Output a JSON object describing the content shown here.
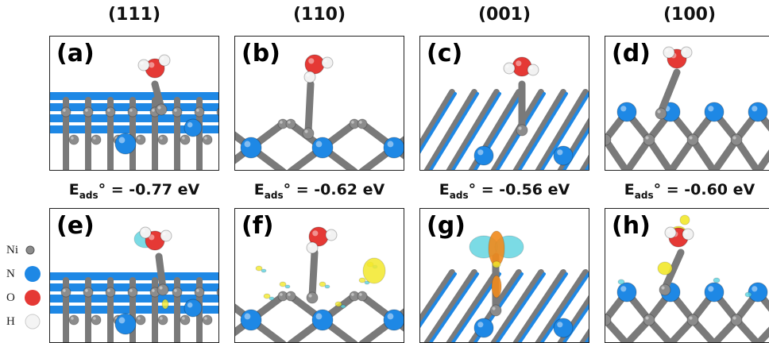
{
  "headers": [
    "(111)",
    "(110)",
    "(001)",
    "(100)"
  ],
  "panels_top": [
    "(a)",
    "(b)",
    "(c)",
    "(d)"
  ],
  "panels_bottom": [
    "(e)",
    "(f)",
    "(g)",
    "(h)"
  ],
  "energies": [
    {
      "prefix": "E",
      "sub": "ads",
      "value": "° = -0.77 eV"
    },
    {
      "prefix": "E",
      "sub": "ads",
      "value": "° = -0.62 eV"
    },
    {
      "prefix": "E",
      "sub": "ads",
      "value": "° = -0.56 eV"
    },
    {
      "prefix": "E",
      "sub": "ads",
      "value": "° = -0.60 eV"
    }
  ],
  "legend": [
    {
      "label": "Ni",
      "color": "#8c8c8c"
    },
    {
      "label": "N",
      "color": "#1e88e5"
    },
    {
      "label": "O",
      "color": "#e53935"
    },
    {
      "label": "H",
      "color": "#f2f2f2"
    }
  ],
  "colors": {
    "ni": "#8c8c8c",
    "n": "#1e88e5",
    "o": "#e53935",
    "h": "#f2f2f2",
    "iso_cyan": "#5ad2de",
    "iso_yellow": "#f2e82a",
    "iso_orange": "#f08a1c"
  }
}
